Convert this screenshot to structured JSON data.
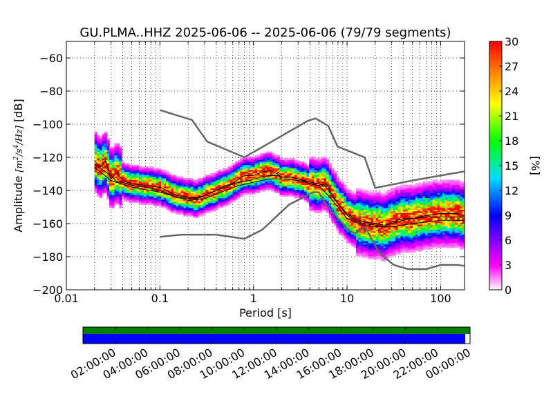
{
  "chart_data": [
    {
      "type": "heatmap",
      "title": "GU.PLMA..HHZ   2025-06-06 -- 2025-06-06  (79/79 segments)",
      "xlabel": "Period [s]",
      "ylabel_prefix": "Amplitude ",
      "ylabel_unit_num": "m",
      "ylabel_unit_sup": "2",
      "ylabel_unit_mid": "/s",
      "ylabel_unit_sup2": "4",
      "ylabel_unit_end": "/Hz",
      "ylabel_suffix": " [dB]",
      "xscale": "log",
      "xlim": [
        0.01,
        180
      ],
      "ylim": [
        -200,
        -50
      ],
      "x_ticks": [
        "0.01",
        "0.1",
        "1",
        "10",
        "100"
      ],
      "y_ticks": [
        "−60",
        "−80",
        "−100",
        "−120",
        "−140",
        "−160",
        "−180",
        "−200"
      ],
      "grid": true,
      "colorbar": {
        "label": "[%]",
        "range": [
          0,
          30
        ],
        "ticks": [
          "0",
          "3",
          "6",
          "9",
          "12",
          "15",
          "18",
          "21",
          "24",
          "27",
          "30"
        ]
      },
      "series": [
        {
          "name": "NHNM",
          "color": "#666666",
          "points": [
            [
              0.1,
              -91.5
            ],
            [
              0.22,
              -97.4
            ],
            [
              0.32,
              -110.5
            ],
            [
              0.8,
              -120
            ],
            [
              3.8,
              -98
            ],
            [
              4.6,
              -96.5
            ],
            [
              6.3,
              -101
            ],
            [
              7.9,
              -113.5
            ],
            [
              15.4,
              -120
            ],
            [
              20,
              -138.5
            ],
            [
              50,
              -134
            ],
            [
              100,
              -131
            ],
            [
              180,
              -128.5
            ]
          ]
        },
        {
          "name": "NLNM",
          "color": "#666666",
          "points": [
            [
              0.1,
              -168
            ],
            [
              0.17,
              -166.7
            ],
            [
              0.4,
              -166.7
            ],
            [
              0.8,
              -169.2
            ],
            [
              1.24,
              -163.7
            ],
            [
              2.4,
              -148.6
            ],
            [
              4.3,
              -141.1
            ],
            [
              5,
              -141.1
            ],
            [
              6,
              -149
            ],
            [
              10,
              -163
            ],
            [
              12,
              -166
            ],
            [
              15.6,
              -162
            ],
            [
              21.9,
              -177.5
            ],
            [
              31.6,
              -185
            ],
            [
              45,
              -187.5
            ],
            [
              70,
              -187.5
            ],
            [
              100,
              -185
            ],
            [
              150,
              -185
            ],
            [
              180,
              -185.5
            ]
          ]
        },
        {
          "name": "mean",
          "color": "#000000",
          "points": [
            [
              0.02,
              -124
            ],
            [
              0.025,
              -128
            ],
            [
              0.03,
              -131
            ],
            [
              0.035,
              -135
            ],
            [
              0.04,
              -135
            ],
            [
              0.05,
              -137
            ],
            [
              0.07,
              -138
            ],
            [
              0.1,
              -140
            ],
            [
              0.15,
              -144
            ],
            [
              0.2,
              -145
            ],
            [
              0.25,
              -144
            ],
            [
              0.3,
              -143
            ],
            [
              0.4,
              -140
            ],
            [
              0.5,
              -137
            ],
            [
              0.7,
              -135
            ],
            [
              0.9,
              -134
            ],
            [
              1.2,
              -132
            ],
            [
              1.5,
              -131
            ],
            [
              1.8,
              -131
            ],
            [
              2,
              -132
            ],
            [
              2.5,
              -132
            ],
            [
              3,
              -133
            ],
            [
              4,
              -135
            ],
            [
              5,
              -136
            ],
            [
              6,
              -138
            ],
            [
              7,
              -144
            ],
            [
              8,
              -148
            ],
            [
              10,
              -154
            ],
            [
              12,
              -157
            ],
            [
              15,
              -159
            ],
            [
              20,
              -160
            ],
            [
              25,
              -161
            ],
            [
              30,
              -160
            ],
            [
              40,
              -158
            ],
            [
              50,
              -157
            ],
            [
              70,
              -156
            ],
            [
              100,
              -156
            ],
            [
              150,
              -156
            ],
            [
              180,
              -156
            ]
          ]
        },
        {
          "name": "mode",
          "color": "#000000",
          "points": [
            [
              0.02,
              -122
            ],
            [
              0.023,
              -126
            ],
            [
              0.026,
              -122
            ],
            [
              0.03,
              -133
            ],
            [
              0.035,
              -129
            ],
            [
              0.04,
              -134
            ],
            [
              0.05,
              -136
            ],
            [
              0.07,
              -137
            ],
            [
              0.1,
              -138
            ],
            [
              0.15,
              -143
            ],
            [
              0.2,
              -144
            ],
            [
              0.25,
              -145
            ],
            [
              0.3,
              -143
            ],
            [
              0.4,
              -140
            ],
            [
              0.5,
              -138
            ],
            [
              0.6,
              -136
            ],
            [
              0.7,
              -133
            ],
            [
              0.8,
              -131
            ],
            [
              1,
              -131
            ],
            [
              1.2,
              -129
            ],
            [
              1.5,
              -128
            ],
            [
              1.8,
              -130
            ],
            [
              2,
              -132
            ],
            [
              2.5,
              -132
            ],
            [
              3,
              -133
            ],
            [
              4,
              -136
            ],
            [
              5,
              -137
            ],
            [
              6,
              -136
            ],
            [
              7,
              -143
            ],
            [
              8,
              -148
            ],
            [
              10,
              -155
            ],
            [
              12,
              -158
            ],
            [
              15,
              -160
            ],
            [
              20,
              -161
            ],
            [
              25,
              -162
            ],
            [
              30,
              -159
            ],
            [
              40,
              -157
            ],
            [
              50,
              -157
            ],
            [
              70,
              -155
            ],
            [
              100,
              -154
            ],
            [
              150,
              -154
            ],
            [
              180,
              -155
            ]
          ]
        },
        {
          "name": "percentile",
          "color": "#000000",
          "points": [
            [
              0.02,
              -126
            ],
            [
              0.03,
              -134
            ],
            [
              0.05,
              -138
            ],
            [
              0.1,
              -141
            ],
            [
              0.2,
              -146
            ],
            [
              0.3,
              -145
            ],
            [
              0.5,
              -140
            ],
            [
              0.7,
              -137
            ],
            [
              1,
              -135
            ],
            [
              1.5,
              -133
            ],
            [
              2,
              -133
            ],
            [
              3,
              -134
            ],
            [
              5,
              -137
            ],
            [
              7,
              -146
            ],
            [
              10,
              -157
            ],
            [
              15,
              -161
            ],
            [
              20,
              -162
            ],
            [
              30,
              -162
            ],
            [
              50,
              -160
            ],
            [
              100,
              -158
            ],
            [
              180,
              -158
            ]
          ]
        }
      ]
    },
    {
      "type": "bar",
      "x_ticks": [
        "02:00:00",
        "04:00:00",
        "06:00:00",
        "08:00:00",
        "10:00:00",
        "12:00:00",
        "14:00:00",
        "16:00:00",
        "18:00:00",
        "20:00:00",
        "22:00:00",
        "00:00:00"
      ],
      "bands": [
        {
          "color": "#008000",
          "from_hour": 0,
          "to_hour": 24
        },
        {
          "color": "#0000ff",
          "from_hour": 0,
          "to_hour": 23.7
        }
      ]
    }
  ]
}
